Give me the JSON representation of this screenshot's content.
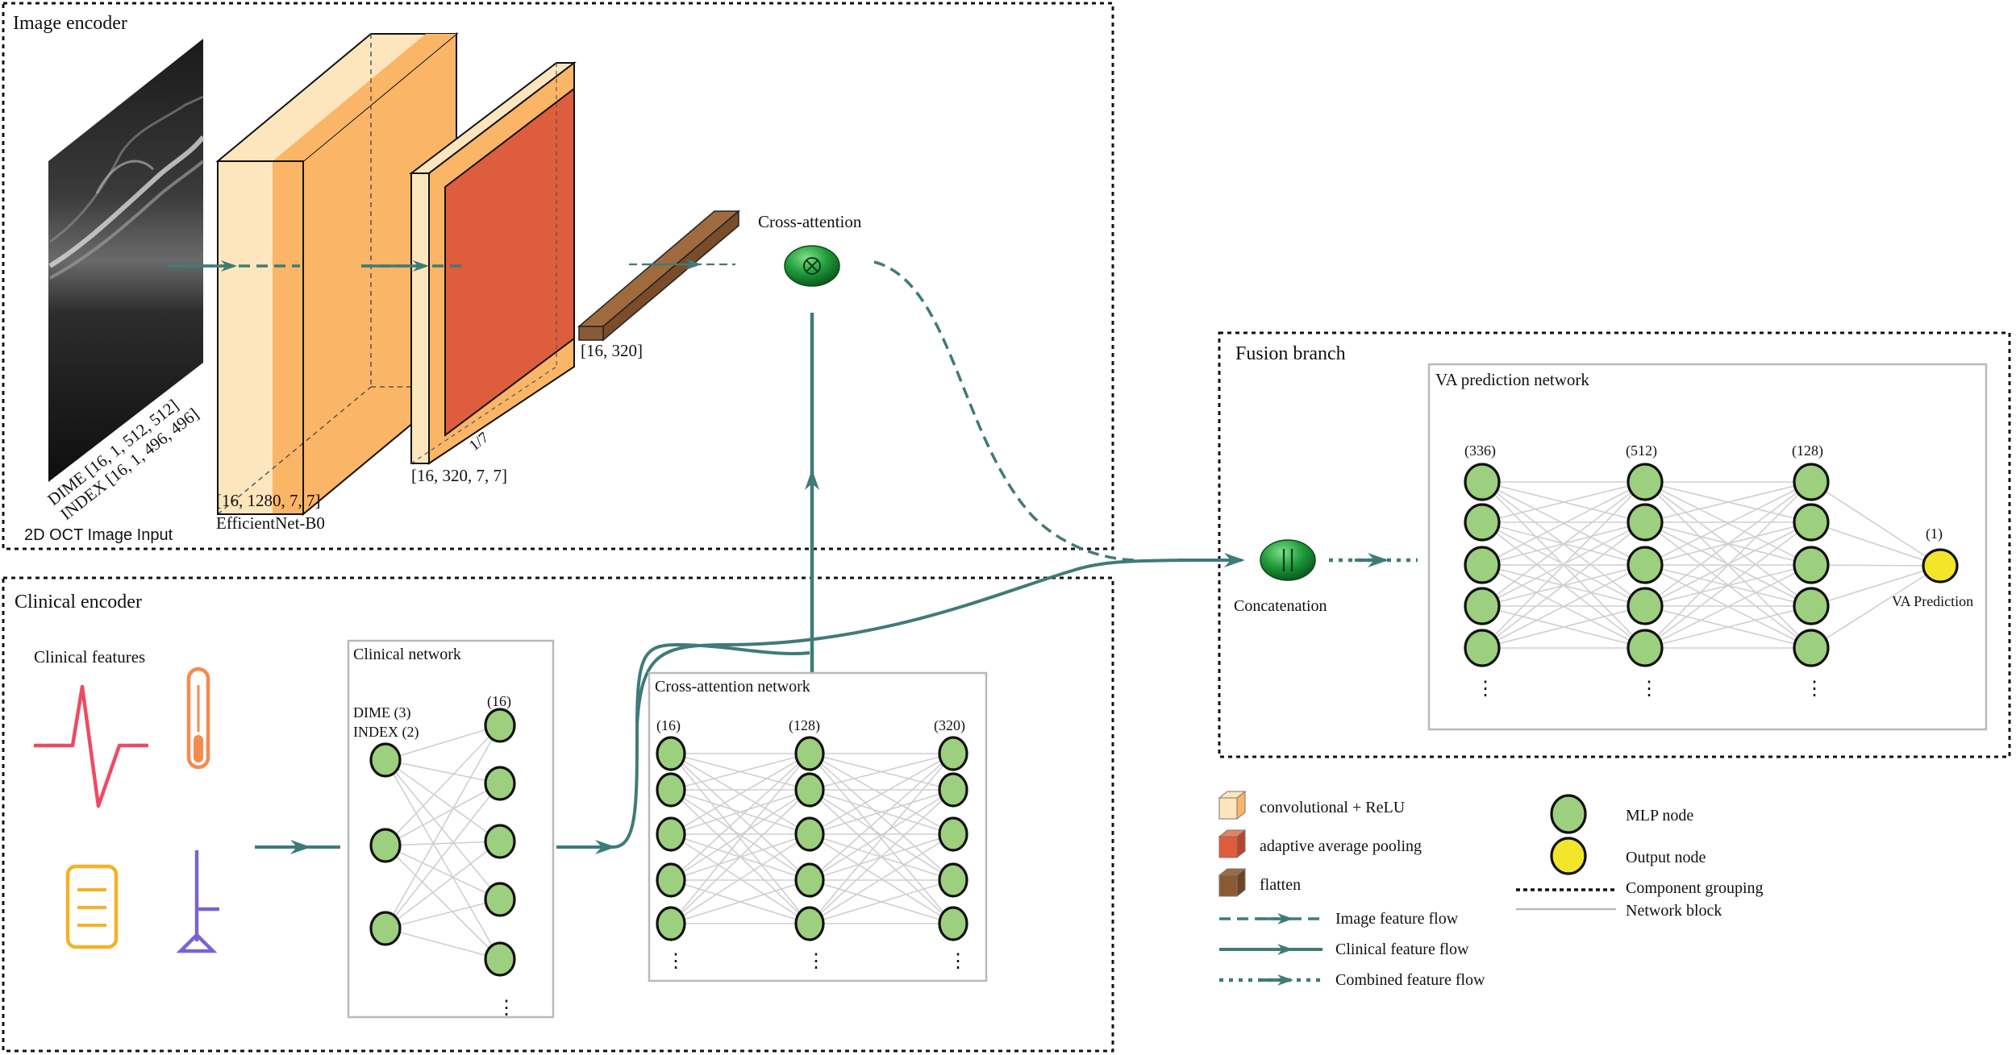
{
  "image_encoder": {
    "title": "Image encoder",
    "input_dims_1": "DIME [16, 1, 512, 512]",
    "input_dims_2": "INDEX [16, 1, 496, 496]",
    "input_label": "2D OCT Image Input",
    "conv_dims": "[16, 1280, 7, 7]",
    "conv_name": "EfficientNet-B0",
    "pool_dims": "[16, 320, 7, 7]",
    "pool_ratio": "1/7",
    "flatten_dims": "[16, 320]",
    "cross_attention_label": "Cross-attention"
  },
  "clinical_encoder": {
    "title": "Clinical encoder",
    "features_label": "Clinical features",
    "clinical_network": {
      "title": "Clinical network",
      "input_line_1": "DIME (3)",
      "input_line_2": "INDEX (2)",
      "output_count": "(16)",
      "ellipsis": "⋮"
    },
    "cross_attention_network": {
      "title": "Cross-attention network",
      "layers": [
        "(16)",
        "(128)",
        "(320)"
      ],
      "ellipsis": "⋮"
    },
    "icon_colors": {
      "ecg": "#ef4a63",
      "thermometer": "#f58a4f",
      "document": "#f5b226",
      "stick": "#7a63d4"
    }
  },
  "fusion": {
    "title": "Fusion branch",
    "concat_label": "Concatenation",
    "va_network": {
      "title": "VA prediction network",
      "layers": [
        "(336)",
        "(512)",
        "(128)"
      ],
      "output_count": "(1)",
      "output_label": "VA Prediction",
      "ellipsis": "⋮"
    }
  },
  "legend": {
    "conv": "convolutional + ReLU",
    "pool": "adaptive average pooling",
    "flatten": "flatten",
    "image_flow": "Image feature flow",
    "clinical_flow": "Clinical feature flow",
    "combined_flow": "Combined feature flow",
    "mlp_node": "MLP node",
    "output_node": "Output node",
    "component": "Component grouping",
    "network_block": "Network block"
  },
  "colors": {
    "flow": "#3f7b78",
    "node_fill": "#9ccf7e",
    "output_fill": "#f2e52a",
    "conv_light": "#fde6bd",
    "conv_dark": "#fbb567",
    "pool": "#de5d3c",
    "flatten": "#8a5a35",
    "attention": "#1f9a3a"
  }
}
